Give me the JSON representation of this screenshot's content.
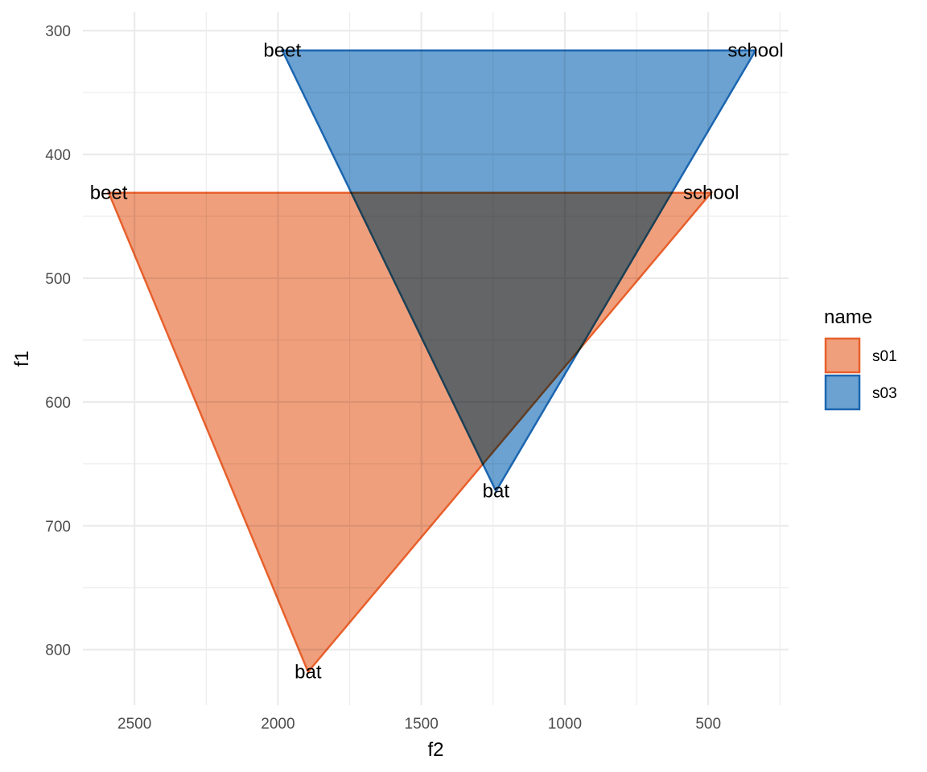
{
  "chart_data": {
    "type": "area",
    "xlabel": "f2",
    "ylabel": "f1",
    "x_reversed": true,
    "y_reversed": true,
    "xlim": [
      2680,
      220
    ],
    "ylim": [
      285,
      845
    ],
    "x_ticks": [
      2500,
      2000,
      1500,
      1000,
      500
    ],
    "y_ticks": [
      300,
      400,
      500,
      600,
      700,
      800
    ],
    "grid": true,
    "legend": {
      "title": "name",
      "placement": "right"
    },
    "series": [
      {
        "name": "s01",
        "fill": "#ef9f7c",
        "stroke": "#e8602c",
        "points": [
          {
            "label": "beet",
            "f2": 2590,
            "f1": 431
          },
          {
            "label": "school",
            "f2": 490,
            "f1": 431
          },
          {
            "label": "bat",
            "f2": 1895,
            "f1": 818
          }
        ]
      },
      {
        "name": "s03",
        "fill": "#6ba2d1",
        "stroke": "#1c66b0",
        "points": [
          {
            "label": "beet",
            "f2": 1985,
            "f1": 316
          },
          {
            "label": "school",
            "f2": 335,
            "f1": 316
          },
          {
            "label": "bat",
            "f2": 1240,
            "f1": 672
          }
        ]
      }
    ]
  }
}
